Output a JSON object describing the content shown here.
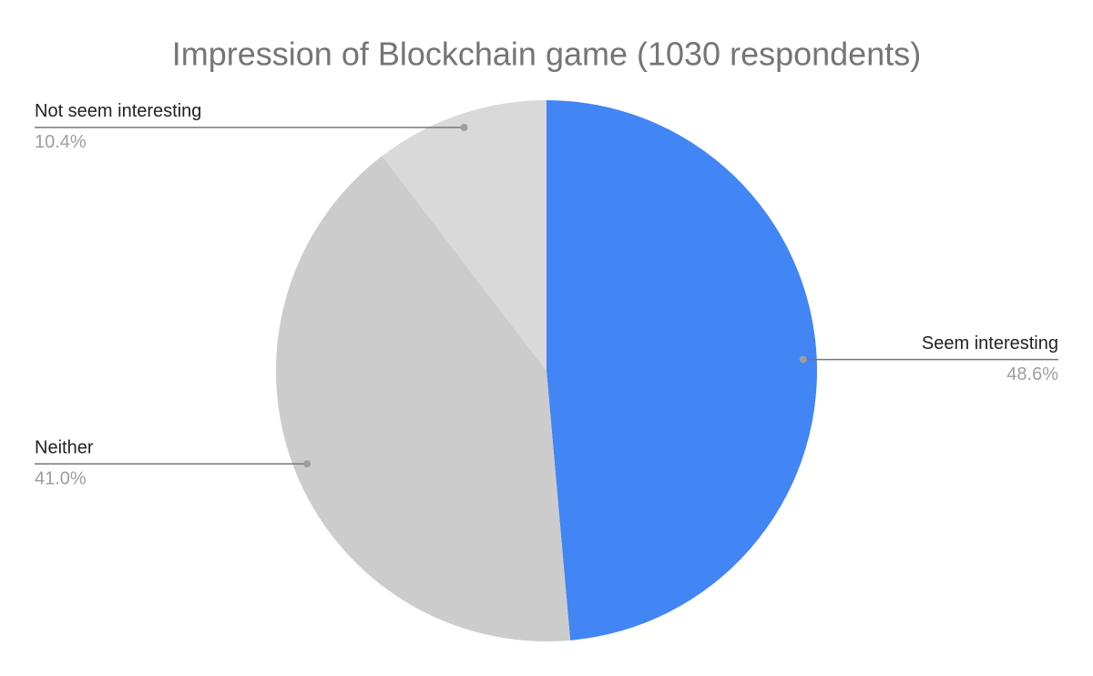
{
  "chart_data": {
    "type": "pie",
    "title": "Impression of Blockchain game (1030 respondents)",
    "categories": [
      "Seem interesting",
      "Neither",
      "Not seem interesting"
    ],
    "values": [
      48.6,
      41.0,
      10.4
    ],
    "value_labels": [
      "48.6%",
      "41.0%",
      "10.4%"
    ],
    "colors": [
      "#4285f4",
      "#cccccc",
      "#d9d9d9"
    ]
  }
}
